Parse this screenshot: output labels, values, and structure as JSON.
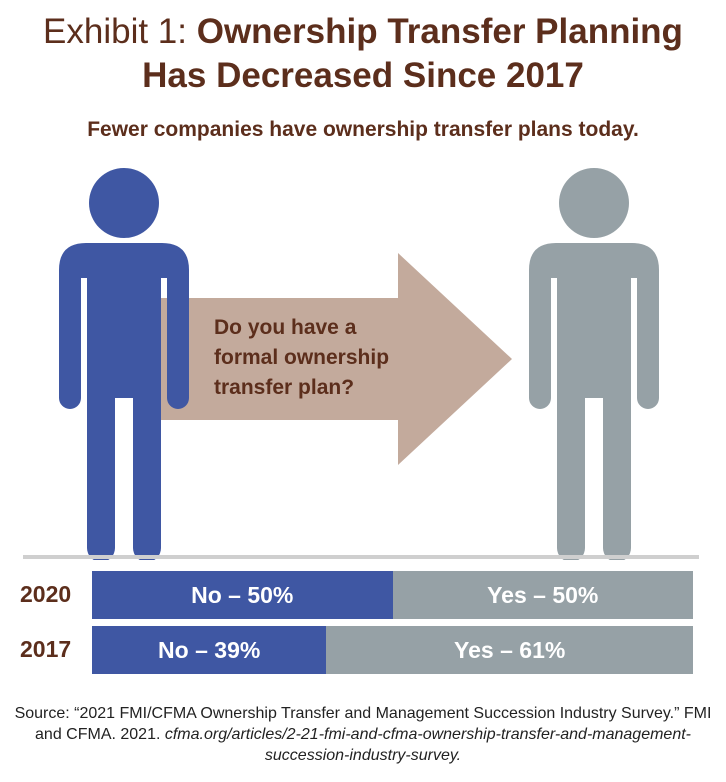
{
  "title": {
    "lead": "Exhibit 1: ",
    "bold_line1": "Ownership Transfer Planning",
    "bold_line2": "Has Decreased Since 2017"
  },
  "subtitle": "Fewer companies have ownership transfer plans today.",
  "question": "Do you have a formal ownership transfer plan?",
  "colors": {
    "no": "#3f57a3",
    "yes": "#96a1a6",
    "arrow": "#c3aa9c",
    "text": "#5c2e1c"
  },
  "icons": [
    "person-icon-blue",
    "person-icon-gray",
    "arrow-right-icon"
  ],
  "chart_data": {
    "type": "bar",
    "orientation": "horizontal-stacked",
    "categories": [
      "2020",
      "2017"
    ],
    "series": [
      {
        "name": "No",
        "values": [
          50,
          39
        ]
      },
      {
        "name": "Yes",
        "values": [
          50,
          61
        ]
      }
    ],
    "labels": [
      [
        "No – 50%",
        "Yes – 50%"
      ],
      [
        "No – 39%",
        "Yes – 61%"
      ]
    ],
    "unit": "%",
    "xlim": [
      0,
      100
    ]
  },
  "source": {
    "text": "Source: “2021 FMI/CFMA Ownership Transfer and Management Succession Industry Survey.” FMI and CFMA. 2021. ",
    "link": "cfma.org/articles/2-21-fmi-and-cfma-ownership-transfer-and-management-succession-industry-survey."
  }
}
